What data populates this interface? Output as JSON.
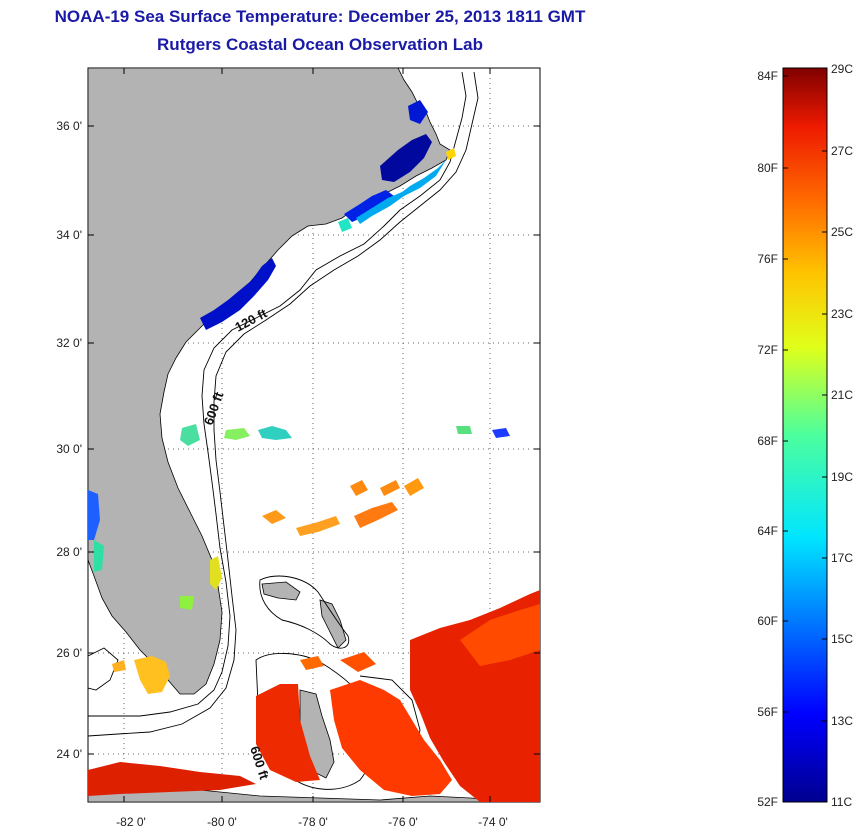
{
  "title": "NOAA-19 Sea Surface Temperature:  December 25, 2013 1811 GMT",
  "subtitle": "Rutgers Coastal Ocean Observation Lab",
  "lat_ticks": [
    "36 0'",
    "34 0'",
    "32 0'",
    "30 0'",
    "28 0'",
    "26 0'",
    "24 0'"
  ],
  "lon_ticks": [
    "-82 0'",
    "-80 0'",
    "-78 0'",
    "-76 0'",
    "-74 0'"
  ],
  "contour_labels": [
    "120 ft",
    "600 ft",
    "600 ft"
  ],
  "colorbar": {
    "f_labels": [
      "84F",
      "80F",
      "76F",
      "72F",
      "68F",
      "64F",
      "60F",
      "56F",
      "52F"
    ],
    "c_labels": [
      "29C",
      "27C",
      "25C",
      "23C",
      "21C",
      "19C",
      "17C",
      "15C",
      "13C",
      "11C"
    ]
  },
  "colors": {
    "land": "#b3b3b3",
    "title": "#1a1aa6",
    "cold": "#00008b",
    "warm": "#8b0000"
  }
}
